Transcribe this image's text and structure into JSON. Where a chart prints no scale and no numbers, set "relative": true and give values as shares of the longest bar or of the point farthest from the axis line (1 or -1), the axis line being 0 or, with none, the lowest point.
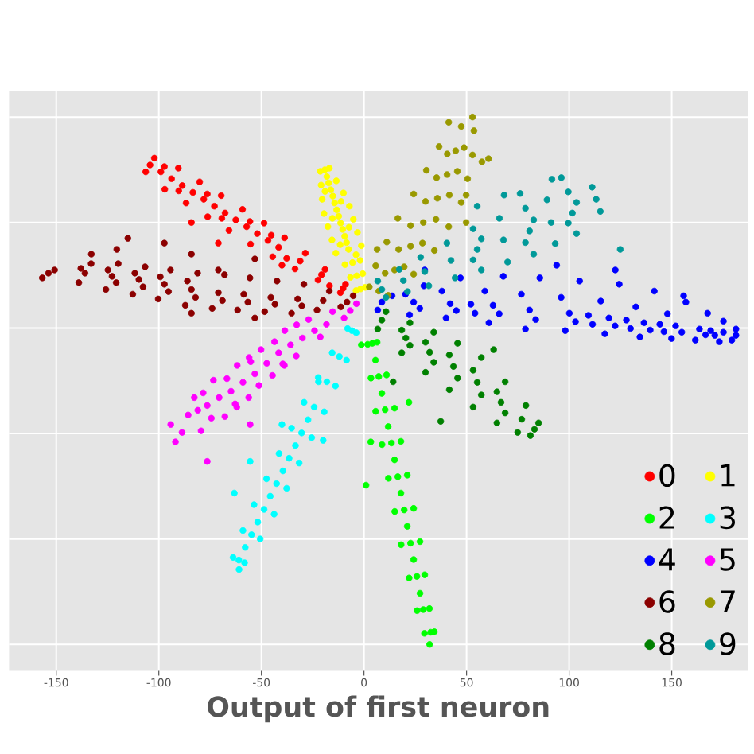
{
  "chart_data": {
    "type": "scatter",
    "xlabel": "Output of first neuron",
    "xlim": [
      -173,
      187
    ],
    "xticks": [
      -150,
      -100,
      -50,
      0,
      50,
      100,
      150
    ],
    "relative": true,
    "grid": true,
    "legend": "bottom right",
    "marker": "circle",
    "series": [
      {
        "name": "0",
        "color": "#ff0000",
        "x": [
          -10.2,
          -9.0,
          -11.5,
          -20.7,
          -19.0,
          -22.4,
          -31.1,
          -28.6,
          -33.6,
          -41.6,
          -38.7,
          -44.5,
          -52.0,
          -48.7,
          -55.3,
          -62.5,
          -59.2,
          -65.8,
          -72.9,
          -69.6,
          -76.2,
          -83.4,
          -80.1,
          -86.7,
          -93.8,
          -90.5,
          -97.1,
          -104.3,
          -102.2,
          -106.4,
          -71.0,
          -40.0,
          -84.1,
          -16.8,
          -46.8,
          -57.2,
          -67.7,
          -78.1,
          -88.6,
          -99.0,
          -55.6,
          -69.3,
          -76.4,
          -90.3,
          -97.3,
          -37.7,
          -45.2
        ],
        "values": [
          0.675,
          0.683,
          0.667,
          0.701,
          0.711,
          0.691,
          0.727,
          0.742,
          0.712,
          0.753,
          0.771,
          0.735,
          0.779,
          0.799,
          0.759,
          0.805,
          0.825,
          0.785,
          0.831,
          0.851,
          0.811,
          0.857,
          0.877,
          0.837,
          0.883,
          0.903,
          0.863,
          0.909,
          0.922,
          0.896,
          0.761,
          0.719,
          0.8,
          0.68,
          0.766,
          0.792,
          0.818,
          0.844,
          0.87,
          0.896,
          0.802,
          0.808,
          0.854,
          0.86,
          0.906,
          0.732,
          0.776
        ]
      },
      {
        "name": "1",
        "color": "#ffff00",
        "x": [
          -1.7,
          0.5,
          -3.9,
          -3.6,
          -0.6,
          -6.6,
          -5.6,
          -1.9,
          -9.3,
          -7.5,
          -1.3,
          -13.7,
          -9.4,
          -3.2,
          -15.6,
          -11.4,
          -5.2,
          -17.6,
          -13.3,
          -7.1,
          -19.5,
          -15.2,
          -10.0,
          -20.4,
          -17.2,
          -13.5,
          -20.9,
          -19.1,
          -16.9,
          -21.3,
          -8.5,
          -10.4,
          -12.3,
          -14.3,
          -16.2,
          -18.1,
          -7.3,
          -15.4,
          -11.2,
          -19.0,
          -11.6,
          -3.9
        ],
        "values": [
          0.674,
          0.677,
          0.671,
          0.699,
          0.703,
          0.696,
          0.724,
          0.728,
          0.72,
          0.749,
          0.756,
          0.742,
          0.774,
          0.781,
          0.767,
          0.799,
          0.806,
          0.792,
          0.824,
          0.831,
          0.817,
          0.85,
          0.856,
          0.844,
          0.875,
          0.879,
          0.871,
          0.9,
          0.903,
          0.897,
          0.762,
          0.787,
          0.812,
          0.837,
          0.862,
          0.887,
          0.791,
          0.808,
          0.84,
          0.859,
          0.758,
          0.739
        ]
      },
      {
        "name": "2",
        "color": "#00ff00",
        "x": [
          4.1,
          1.8,
          6.4,
          7.2,
          3.4,
          11.0,
          10.3,
          5.7,
          14.9,
          13.4,
          8.8,
          18.0,
          16.5,
          11.9,
          21.1,
          19.6,
          15.0,
          24.2,
          22.7,
          18.1,
          27.3,
          25.8,
          22.0,
          29.6,
          28.9,
          25.9,
          31.9,
          32.0,
          29.5,
          32.5,
          5.6,
          8.7,
          11.8,
          14.9,
          18.0,
          21.1,
          24.2,
          27.3,
          1.0,
          3.3,
          21.9,
          34.3,
          -1.3
        ],
        "values": [
          0.571,
          0.569,
          0.573,
          0.508,
          0.505,
          0.511,
          0.445,
          0.442,
          0.448,
          0.382,
          0.379,
          0.385,
          0.318,
          0.315,
          0.321,
          0.255,
          0.252,
          0.258,
          0.192,
          0.189,
          0.195,
          0.129,
          0.126,
          0.132,
          0.066,
          0.064,
          0.068,
          0.0,
          0.021,
          0.023,
          0.539,
          0.476,
          0.413,
          0.35,
          0.287,
          0.224,
          0.161,
          0.097,
          0.302,
          0.384,
          0.459,
          0.024,
          0.568
        ]
      },
      {
        "name": "3",
        "color": "#00ffff",
        "x": [
          -5.9,
          -8.0,
          -3.8,
          -12.0,
          -15.5,
          -8.5,
          -18.1,
          -22.3,
          -13.9,
          -24.3,
          -29.2,
          -19.4,
          -30.4,
          -35.3,
          -25.5,
          -36.5,
          -41.4,
          -31.6,
          -42.6,
          -47.5,
          -37.7,
          -48.7,
          -53.6,
          -43.8,
          -54.8,
          -59.0,
          -50.6,
          -61.0,
          -63.8,
          -58.2,
          -27.3,
          -33.4,
          -39.5,
          -45.7,
          -51.8,
          -57.9,
          -63.2,
          -55.5,
          -40.0,
          -60.9,
          -22.2,
          -19.9
        ],
        "values": [
          0.595,
          0.599,
          0.591,
          0.546,
          0.553,
          0.539,
          0.498,
          0.506,
          0.49,
          0.45,
          0.459,
          0.441,
          0.401,
          0.41,
          0.392,
          0.353,
          0.362,
          0.344,
          0.305,
          0.314,
          0.296,
          0.256,
          0.265,
          0.247,
          0.208,
          0.216,
          0.2,
          0.16,
          0.165,
          0.155,
          0.426,
          0.377,
          0.329,
          0.281,
          0.232,
          0.184,
          0.287,
          0.347,
          0.417,
          0.142,
          0.498,
          0.387
        ]
      },
      {
        "name": "4",
        "color": "#0000ff",
        "x": [
          13.7,
          8.7,
          6.7,
          29.2,
          20.2,
          24.2,
          27.2,
          22.2,
          47.0,
          38.0,
          42.0,
          45.0,
          40.0,
          67.9,
          58.9,
          62.9,
          65.9,
          60.9,
          85.7,
          76.7,
          80.7,
          83.7,
          78.7,
          105.1,
          96.1,
          100.1,
          103.1,
          98.1,
          124.4,
          115.4,
          119.4,
          122.4,
          117.4,
          141.5,
          132.5,
          136.5,
          139.5,
          134.5,
          156.9,
          147.9,
          151.9,
          154.9,
          149.9,
          167.5,
          163.5,
          166.5,
          161.5,
          175.2,
          175.2,
          173.2,
          181.3,
          181.3,
          179.3,
          52.1,
          54.1,
          109.4,
          111.4,
          127.9,
          129.9,
          144.2,
          146.2,
          169.0,
          171.0,
          122.5,
          155.8,
          93.9,
          29.6
        ],
        "values": [
          0.661,
          0.649,
          0.634,
          0.68,
          0.664,
          0.649,
          0.637,
          0.625,
          0.695,
          0.67,
          0.646,
          0.633,
          0.619,
          0.698,
          0.67,
          0.643,
          0.627,
          0.61,
          0.695,
          0.664,
          0.634,
          0.616,
          0.598,
          0.689,
          0.658,
          0.628,
          0.612,
          0.595,
          0.683,
          0.651,
          0.619,
          0.604,
          0.589,
          0.67,
          0.64,
          0.61,
          0.596,
          0.583,
          0.649,
          0.627,
          0.604,
          0.592,
          0.58,
          0.628,
          0.598,
          0.587,
          0.577,
          0.613,
          0.592,
          0.574,
          0.598,
          0.586,
          0.577,
          0.645,
          0.628,
          0.624,
          0.607,
          0.615,
          0.599,
          0.607,
          0.593,
          0.595,
          0.586,
          0.71,
          0.661,
          0.719,
          0.71
        ]
      },
      {
        "name": "5",
        "color": "#ff00ff",
        "x": [
          -3.7,
          -6.7,
          -9.7,
          -15.3,
          -18.3,
          -21.3,
          -27.0,
          -30.0,
          -33.0,
          -38.6,
          -43.6,
          -41.6,
          -39.6,
          -44.6,
          -50.2,
          -55.2,
          -53.2,
          -51.2,
          -56.2,
          -61.8,
          -66.8,
          -64.8,
          -62.8,
          -67.8,
          -73.4,
          -78.4,
          -76.4,
          -74.4,
          -79.4,
          -82.7,
          -85.7,
          -88.7,
          -24.1,
          -32.8,
          -35.8,
          -38.8,
          -47.4,
          -56.0,
          -59.0,
          -62.0,
          -70.6,
          -81.0,
          -91.9,
          -76.4,
          -94.2,
          -55.5
        ],
        "values": [
          0.646,
          0.633,
          0.619,
          0.631,
          0.607,
          0.583,
          0.616,
          0.581,
          0.547,
          0.595,
          0.574,
          0.553,
          0.532,
          0.51,
          0.559,
          0.536,
          0.513,
          0.491,
          0.468,
          0.529,
          0.504,
          0.48,
          0.456,
          0.432,
          0.501,
          0.477,
          0.453,
          0.429,
          0.405,
          0.468,
          0.435,
          0.402,
          0.595,
          0.606,
          0.568,
          0.529,
          0.533,
          0.544,
          0.497,
          0.45,
          0.468,
          0.444,
          0.384,
          0.347,
          0.417,
          0.417
        ]
      },
      {
        "name": "6",
        "color": "#8b0000",
        "x": [
          -150.8,
          -153.8,
          -156.8,
          -133.0,
          -138.0,
          -136.0,
          -139.0,
          -119.8,
          -124.8,
          -122.8,
          -120.8,
          -125.8,
          -106.7,
          -111.7,
          -109.7,
          -107.7,
          -112.7,
          -94.3,
          -99.3,
          -97.3,
          -95.3,
          -100.3,
          -81.1,
          -86.1,
          -84.1,
          -82.1,
          -87.1,
          -68.0,
          -71.0,
          -69.0,
          -74.0,
          -55.6,
          -58.6,
          -56.6,
          -61.6,
          -42.4,
          -45.4,
          -43.4,
          -48.4,
          -29.3,
          -32.3,
          -30.3,
          -35.3,
          -16.9,
          -19.9,
          -22.9,
          -5.3,
          -8.3,
          -11.3,
          -132.9,
          -115.1,
          -120.5,
          -84.1,
          -97.3,
          -53.2,
          -71.0,
          -53.2,
          -84.1
        ],
        "values": [
          0.71,
          0.704,
          0.695,
          0.722,
          0.713,
          0.704,
          0.686,
          0.722,
          0.71,
          0.698,
          0.686,
          0.673,
          0.716,
          0.704,
          0.692,
          0.678,
          0.664,
          0.71,
          0.697,
          0.683,
          0.669,
          0.655,
          0.704,
          0.689,
          0.673,
          0.658,
          0.643,
          0.701,
          0.667,
          0.652,
          0.637,
          0.695,
          0.664,
          0.649,
          0.634,
          0.689,
          0.658,
          0.645,
          0.631,
          0.683,
          0.655,
          0.642,
          0.628,
          0.67,
          0.652,
          0.634,
          0.661,
          0.649,
          0.64,
          0.74,
          0.77,
          0.749,
          0.74,
          0.761,
          0.731,
          0.71,
          0.619,
          0.628
        ]
      },
      {
        "name": "7",
        "color": "#999900",
        "x": [
          41.3,
          47.4,
          53.6,
          36.6,
          40.6,
          44.7,
          48.8,
          52.9,
          30.4,
          35.4,
          40.5,
          45.5,
          50.5,
          24.2,
          30.0,
          35.8,
          41.6,
          47.4,
          16.5,
          22.7,
          28.9,
          35.1,
          41.3,
          11.1,
          16.9,
          22.7,
          28.5,
          34.3,
          5.7,
          10.3,
          14.9,
          19.6,
          24.2,
          2.6,
          7.2,
          11.8,
          52.9,
          57.5,
          49.8,
          60.7,
          49.8,
          6.4
        ],
        "values": [
          0.99,
          0.982,
          0.974,
          0.944,
          0.93,
          0.936,
          0.942,
          0.928,
          0.899,
          0.885,
          0.891,
          0.897,
          0.883,
          0.854,
          0.84,
          0.846,
          0.852,
          0.838,
          0.808,
          0.794,
          0.8,
          0.806,
          0.792,
          0.763,
          0.749,
          0.755,
          0.761,
          0.747,
          0.718,
          0.704,
          0.71,
          0.716,
          0.702,
          0.678,
          0.67,
          0.662,
          1.0,
          0.915,
          0.852,
          0.921,
          0.8,
          0.749
        ]
      },
      {
        "name": "8",
        "color": "#008000",
        "x": [
          10.7,
          8.7,
          6.7,
          22.4,
          18.4,
          20.4,
          22.4,
          18.4,
          34.0,
          30.0,
          32.0,
          34.0,
          30.0,
          45.6,
          41.6,
          43.6,
          45.6,
          41.6,
          57.2,
          53.2,
          55.2,
          57.2,
          53.2,
          68.8,
          64.8,
          66.8,
          68.8,
          64.8,
          78.9,
          76.9,
          74.9,
          85.1,
          83.1,
          81.1,
          63.2,
          37.4,
          14.2
        ],
        "values": [
          0.631,
          0.615,
          0.598,
          0.61,
          0.596,
          0.581,
          0.567,
          0.553,
          0.592,
          0.573,
          0.554,
          0.535,
          0.516,
          0.571,
          0.549,
          0.527,
          0.505,
          0.483,
          0.544,
          0.52,
          0.497,
          0.473,
          0.45,
          0.498,
          0.479,
          0.459,
          0.439,
          0.42,
          0.453,
          0.427,
          0.402,
          0.42,
          0.408,
          0.396,
          0.559,
          0.423,
          0.498
        ]
      },
      {
        "name": "9",
        "color": "#009999",
        "x": [
          6.7,
          8.7,
          10.7,
          17.2,
          19.2,
          21.2,
          27.6,
          29.6,
          31.6,
          40.4,
          42.4,
          44.4,
          53.2,
          57.2,
          55.2,
          53.2,
          57.2,
          66.0,
          68.0,
          70.0,
          78.7,
          82.7,
          80.7,
          78.7,
          82.7,
          89.2,
          91.2,
          93.2,
          99.6,
          103.6,
          101.6,
          99.6,
          103.6,
          111.2,
          113.2,
          115.2,
          68.3,
          55.2,
          91.6,
          96.2,
          124.9,
          76.1
        ],
        "values": [
          0.689,
          0.673,
          0.658,
          0.711,
          0.69,
          0.669,
          0.734,
          0.707,
          0.68,
          0.761,
          0.728,
          0.695,
          0.788,
          0.769,
          0.749,
          0.729,
          0.71,
          0.808,
          0.767,
          0.725,
          0.827,
          0.805,
          0.784,
          0.762,
          0.74,
          0.843,
          0.8,
          0.76,
          0.858,
          0.838,
          0.818,
          0.799,
          0.779,
          0.867,
          0.844,
          0.821,
          0.852,
          0.831,
          0.882,
          0.885,
          0.749,
          0.855
        ]
      }
    ]
  }
}
